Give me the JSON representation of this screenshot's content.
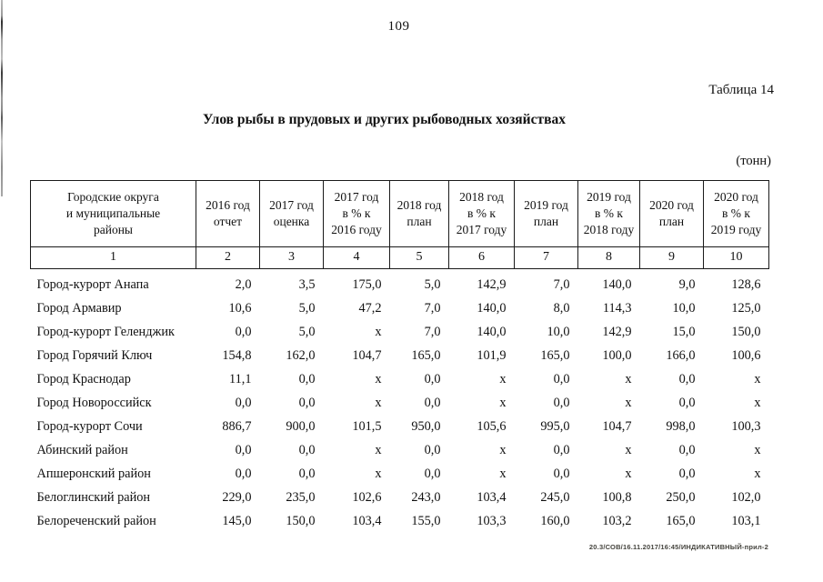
{
  "page": {
    "number": "109",
    "table_label": "Таблица 14",
    "title": "Улов рыбы в прудовых и других рыбоводных хозяйствах",
    "unit_note": "(тонн)",
    "footer_stamp": "20.3/СОВ/16.11.2017/16:45/ИНДИКАТИВНЫЙ-прил-2"
  },
  "table": {
    "columns": [
      {
        "label": "Городские округа\nи муниципальные\nрайоны",
        "num": "1"
      },
      {
        "label": "2016 год\nотчет",
        "num": "2"
      },
      {
        "label": "2017 год\nоценка",
        "num": "3"
      },
      {
        "label": "2017 год\nв % к\n2016 году",
        "num": "4"
      },
      {
        "label": "2018 год\nплан",
        "num": "5"
      },
      {
        "label": "2018 год\nв % к\n2017 году",
        "num": "6"
      },
      {
        "label": "2019 год\nплан",
        "num": "7"
      },
      {
        "label": "2019 год\nв % к\n2018 году",
        "num": "8"
      },
      {
        "label": "2020 год\nплан",
        "num": "9"
      },
      {
        "label": "2020 год\nв % к\n2019 году",
        "num": "10"
      }
    ],
    "rows": [
      {
        "name": "Город-курорт Анапа",
        "values": [
          "2,0",
          "3,5",
          "175,0",
          "5,0",
          "142,9",
          "7,0",
          "140,0",
          "9,0",
          "128,6"
        ]
      },
      {
        "name": "Город Армавир",
        "values": [
          "10,6",
          "5,0",
          "47,2",
          "7,0",
          "140,0",
          "8,0",
          "114,3",
          "10,0",
          "125,0"
        ]
      },
      {
        "name": "Город-курорт Геленджик",
        "values": [
          "0,0",
          "5,0",
          "x",
          "7,0",
          "140,0",
          "10,0",
          "142,9",
          "15,0",
          "150,0"
        ]
      },
      {
        "name": "Город Горячий Ключ",
        "values": [
          "154,8",
          "162,0",
          "104,7",
          "165,0",
          "101,9",
          "165,0",
          "100,0",
          "166,0",
          "100,6"
        ]
      },
      {
        "name": "Город Краснодар",
        "values": [
          "11,1",
          "0,0",
          "x",
          "0,0",
          "x",
          "0,0",
          "x",
          "0,0",
          "x"
        ]
      },
      {
        "name": "Город Новороссийск",
        "values": [
          "0,0",
          "0,0",
          "x",
          "0,0",
          "x",
          "0,0",
          "x",
          "0,0",
          "x"
        ]
      },
      {
        "name": "Город-курорт Сочи",
        "values": [
          "886,7",
          "900,0",
          "101,5",
          "950,0",
          "105,6",
          "995,0",
          "104,7",
          "998,0",
          "100,3"
        ]
      },
      {
        "name": "Абинский район",
        "values": [
          "0,0",
          "0,0",
          "x",
          "0,0",
          "x",
          "0,0",
          "x",
          "0,0",
          "x"
        ]
      },
      {
        "name": "Апшеронский район",
        "values": [
          "0,0",
          "0,0",
          "x",
          "0,0",
          "x",
          "0,0",
          "x",
          "0,0",
          "x"
        ]
      },
      {
        "name": "Белоглинский район",
        "values": [
          "229,0",
          "235,0",
          "102,6",
          "243,0",
          "103,4",
          "245,0",
          "100,8",
          "250,0",
          "102,0"
        ]
      },
      {
        "name": "Белореченский район",
        "values": [
          "145,0",
          "150,0",
          "103,4",
          "155,0",
          "103,3",
          "160,0",
          "103,2",
          "165,0",
          "103,1"
        ]
      }
    ]
  }
}
